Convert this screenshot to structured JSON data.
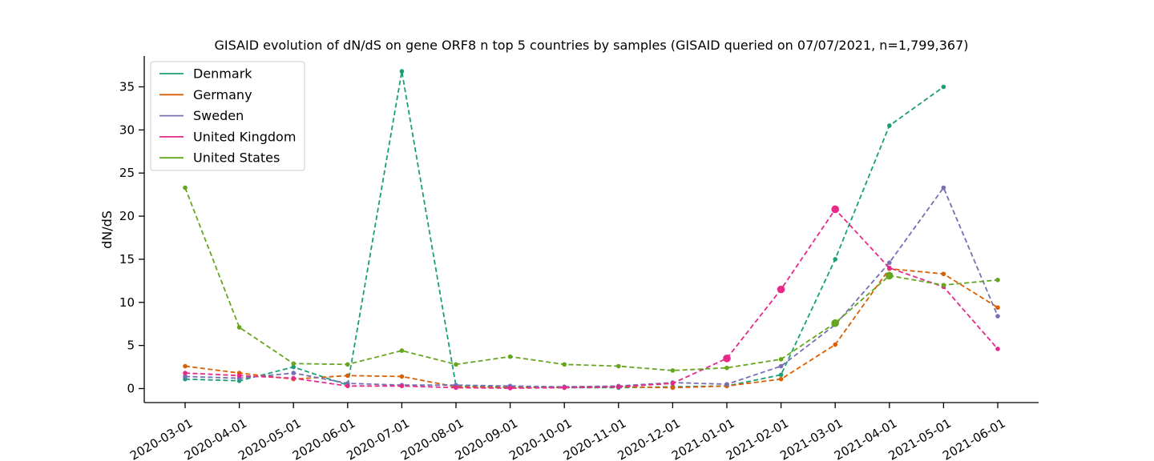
{
  "chart_data": {
    "type": "line",
    "title": "GISAID evolution of dN/dS on gene ORF8 n top 5 countries by samples (GISAID queried on 07/07/2021, n=1,799,367)",
    "xlabel": "",
    "ylabel": "dN/dS",
    "ylim": [
      -1.7,
      38.5
    ],
    "yticks": [
      0,
      5,
      10,
      15,
      20,
      25,
      30,
      35
    ],
    "categories": [
      "2020-03-01",
      "2020-04-01",
      "2020-05-01",
      "2020-06-01",
      "2020-07-01",
      "2020-08-01",
      "2020-09-01",
      "2020-10-01",
      "2020-11-01",
      "2020-12-01",
      "2021-01-01",
      "2021-02-01",
      "2021-03-01",
      "2021-04-01",
      "2021-05-01",
      "2021-06-01"
    ],
    "grid": false,
    "legend_position": "top-left",
    "series": [
      {
        "name": "Denmark",
        "color": "#1b9e77",
        "values": [
          1.1,
          0.9,
          2.5,
          0.4,
          36.8,
          0.3,
          0.2,
          0.1,
          0.1,
          0.2,
          0.3,
          1.6,
          15.0,
          30.5,
          35.0,
          null
        ]
      },
      {
        "name": "Germany",
        "color": "#d95f02",
        "values": [
          2.6,
          1.8,
          1.1,
          1.5,
          1.4,
          0.2,
          0.1,
          0.2,
          0.2,
          0.1,
          0.3,
          1.1,
          5.1,
          13.9,
          13.3,
          9.4
        ]
      },
      {
        "name": "Sweden",
        "color": "#7570b3",
        "values": [
          1.4,
          1.2,
          1.8,
          0.6,
          0.4,
          0.4,
          0.3,
          0.2,
          0.3,
          0.7,
          0.5,
          2.6,
          7.4,
          14.6,
          23.3,
          8.4
        ]
      },
      {
        "name": "United Kingdom",
        "color": "#e7298a",
        "values": [
          1.8,
          1.5,
          1.2,
          0.3,
          0.3,
          0.1,
          0.05,
          0.1,
          0.2,
          0.6,
          3.5,
          11.5,
          20.8,
          14.0,
          11.8,
          4.6
        ]
      },
      {
        "name": "United States",
        "color": "#66a61e",
        "values": [
          23.3,
          7.1,
          2.9,
          2.8,
          4.4,
          2.8,
          3.7,
          2.8,
          2.6,
          2.1,
          2.4,
          3.4,
          7.6,
          13.1,
          12.0,
          12.6
        ]
      }
    ]
  }
}
